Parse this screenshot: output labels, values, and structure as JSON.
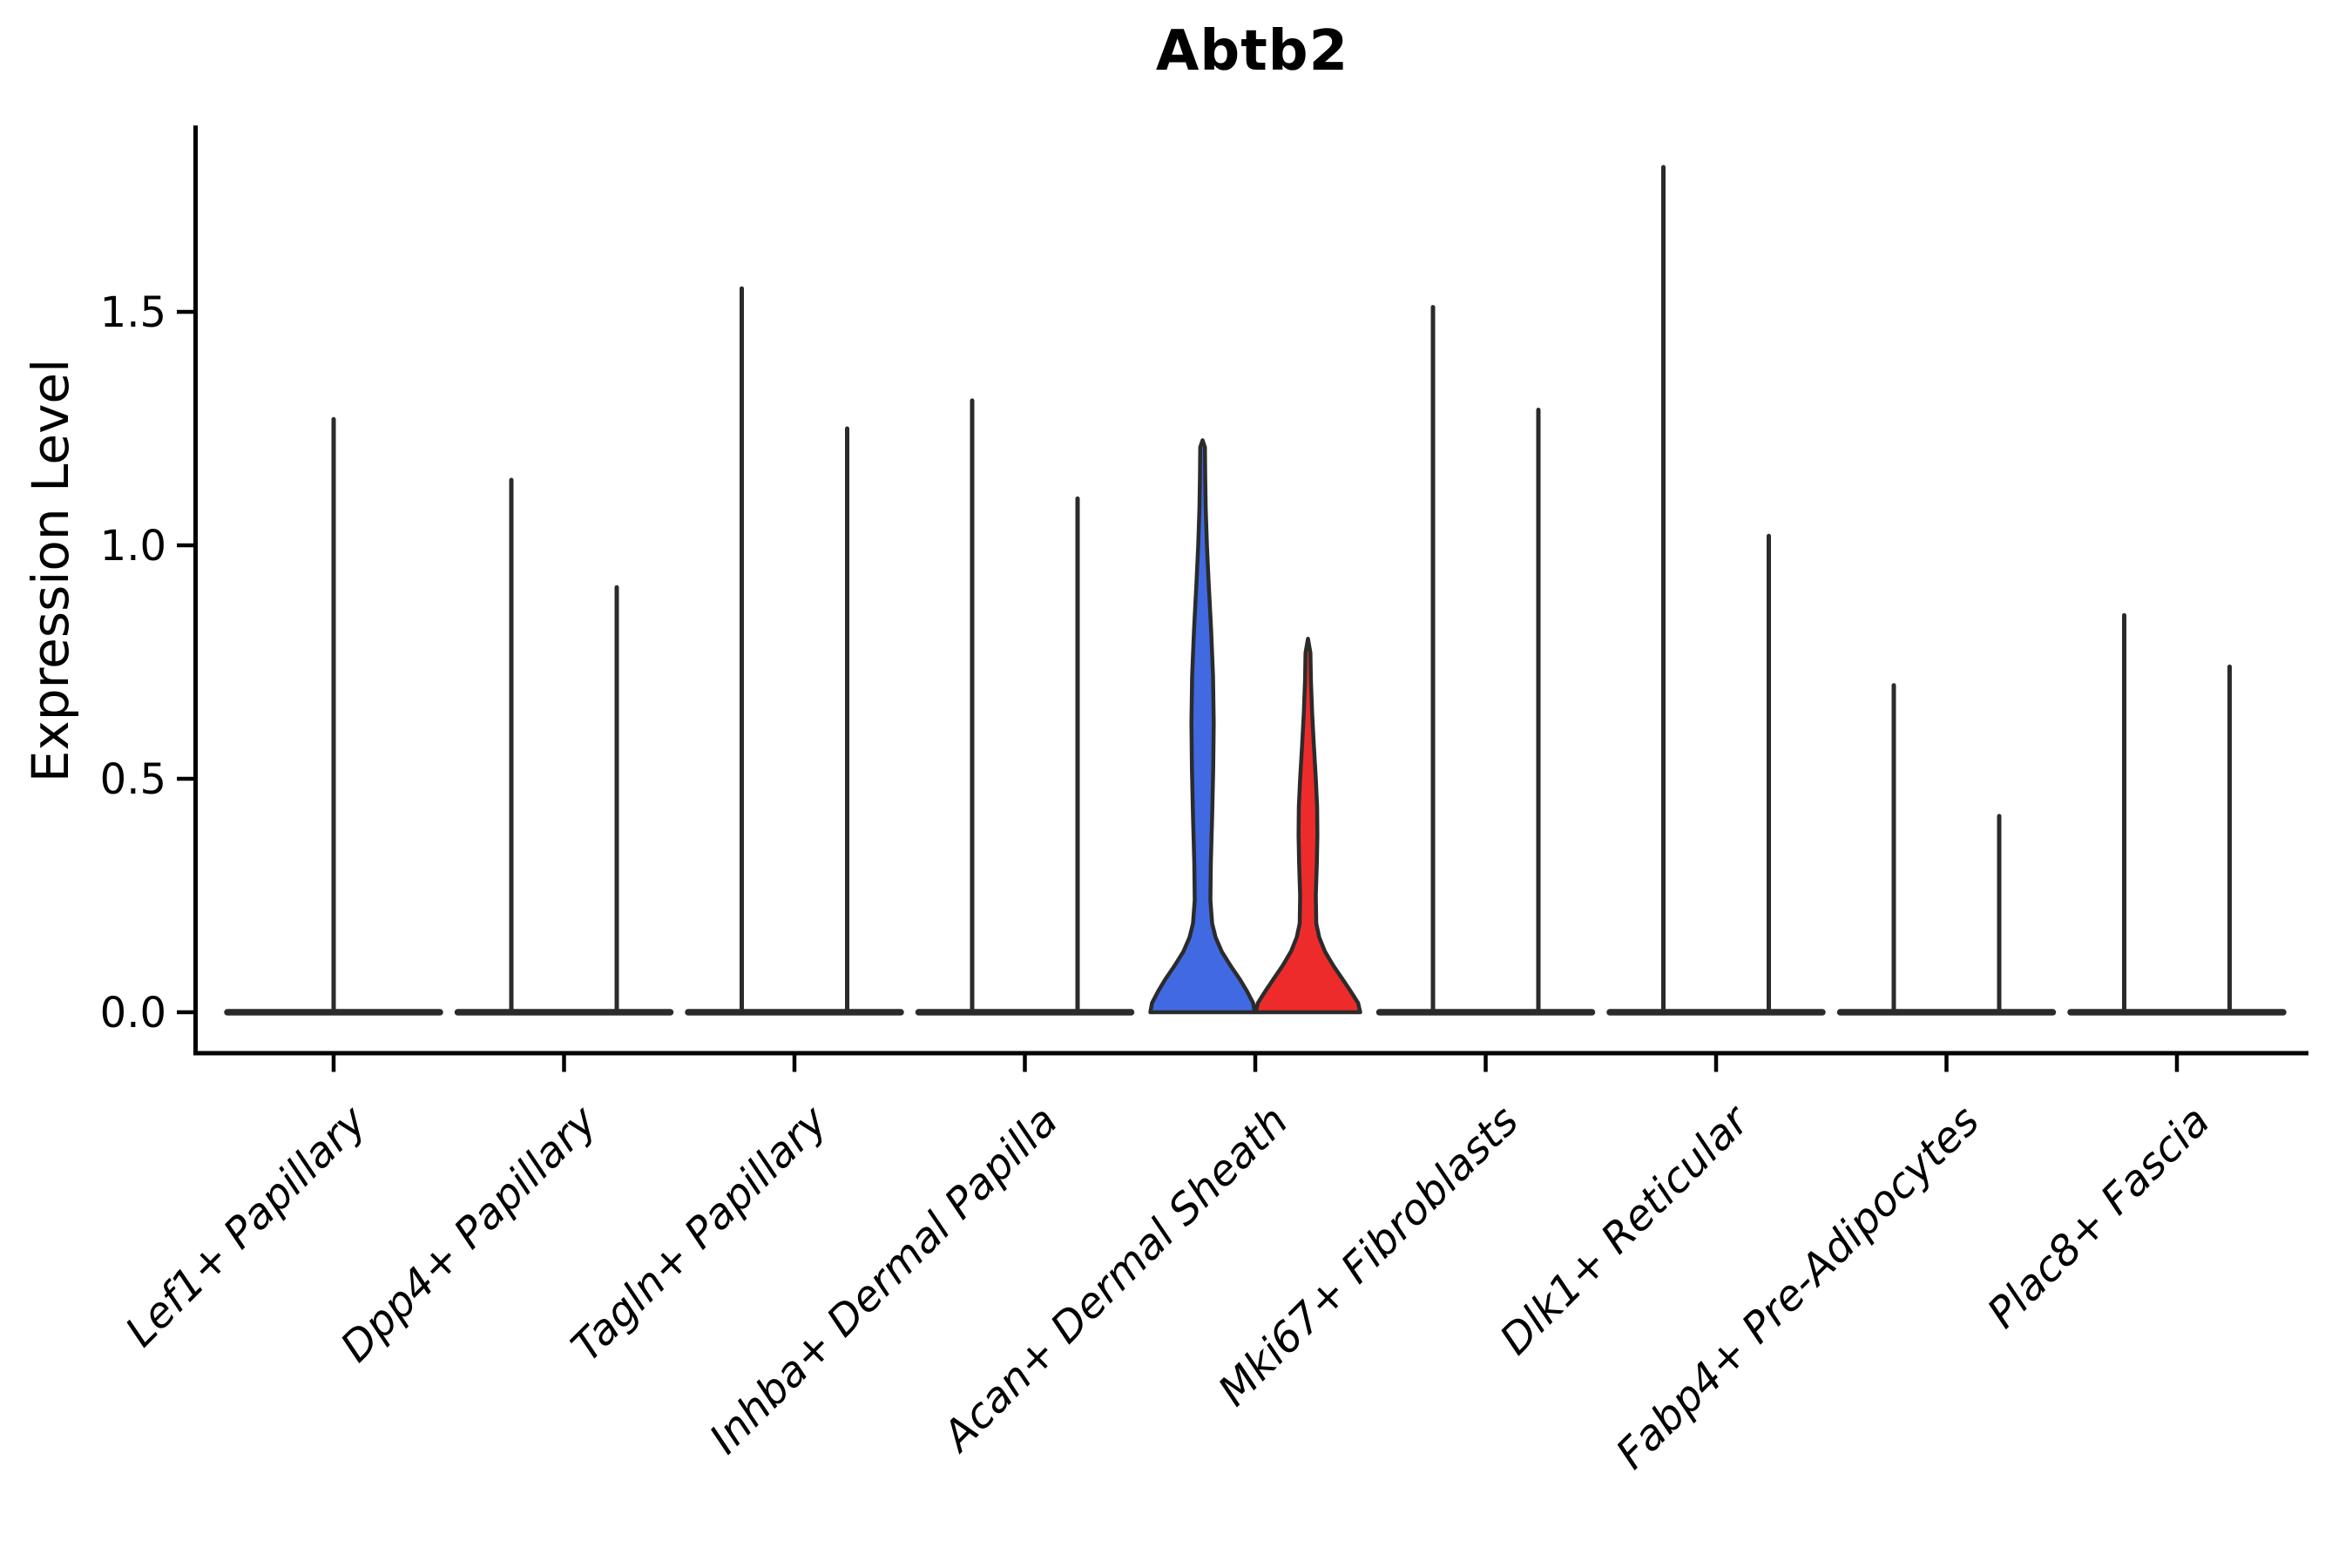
{
  "title": "Abtb2",
  "chart_data": {
    "type": "violin",
    "title": "Abtb2",
    "ylabel": "Expression Level",
    "xlabel": "",
    "background_color": "#ffffff",
    "axis_color": "#000000",
    "violin_outline_color": "#2b2b2b",
    "blue_fill": "#4169E1",
    "red_fill": "#EE2B2B",
    "grid": "off",
    "legend_position": "none",
    "ylim": [
      -0.088,
      1.9
    ],
    "yticks": [
      {
        "value": 0.0,
        "label": "0.0"
      },
      {
        "value": 0.5,
        "label": "0.5"
      },
      {
        "value": 1.0,
        "label": "1.0"
      },
      {
        "value": 1.5,
        "label": "1.5"
      }
    ],
    "categories": [
      "Lef1+ Papillary",
      "Dpp4+ Papillary",
      "Tagln+ Papillary",
      "Inhba+ Dermal Papilla",
      "Acan+ Dermal Sheath",
      "Mki67+ Fibroblasts",
      "Dlk1+ Reticular",
      "Fabp4+ Pre-Adipocytes",
      "Plac8+ Fascia"
    ],
    "groups": [
      {
        "label": "Lef1+ Papillary",
        "violins": [
          {
            "position": "center",
            "kind": "spike",
            "max_expression": 1.27,
            "full_width": true
          }
        ]
      },
      {
        "label": "Dpp4+ Papillary",
        "violins": [
          {
            "position": "left",
            "kind": "spike",
            "max_expression": 1.14
          },
          {
            "position": "right",
            "kind": "spike",
            "max_expression": 0.91
          }
        ]
      },
      {
        "label": "Tagln+ Papillary",
        "violins": [
          {
            "position": "left",
            "kind": "spike",
            "max_expression": 1.55
          },
          {
            "position": "right",
            "kind": "spike",
            "max_expression": 1.25
          }
        ]
      },
      {
        "label": "Inhba+ Dermal Papilla",
        "violins": [
          {
            "position": "left",
            "kind": "spike",
            "max_expression": 1.31
          },
          {
            "position": "right",
            "kind": "spike",
            "max_expression": 1.1
          }
        ]
      },
      {
        "label": "Acan+ Dermal Sheath",
        "violins": [
          {
            "position": "left",
            "kind": "violin",
            "max_expression": 1.22,
            "fill_color": "#4169E1",
            "profile": [
              [
                0,
                60
              ],
              [
                0.02,
                58
              ],
              [
                0.045,
                51
              ],
              [
                0.07,
                43
              ],
              [
                0.1,
                32
              ],
              [
                0.13,
                22
              ],
              [
                0.16,
                15
              ],
              [
                0.19,
                11
              ],
              [
                0.24,
                9
              ],
              [
                0.32,
                9.5
              ],
              [
                0.42,
                11
              ],
              [
                0.52,
                12.2
              ],
              [
                0.62,
                12.8
              ],
              [
                0.72,
                12
              ],
              [
                0.82,
                9.8
              ],
              [
                0.92,
                7
              ],
              [
                1.0,
                5
              ],
              [
                1.08,
                3.6
              ],
              [
                1.15,
                3
              ],
              [
                1.21,
                2.7
              ],
              [
                1.225,
                0
              ]
            ]
          },
          {
            "position": "right",
            "kind": "violin",
            "max_expression": 0.8,
            "fill_color": "#EE2B2B",
            "profile": [
              [
                0,
                60
              ],
              [
                0.02,
                57.5
              ],
              [
                0.045,
                49
              ],
              [
                0.07,
                40
              ],
              [
                0.1,
                29
              ],
              [
                0.13,
                19.5
              ],
              [
                0.16,
                13
              ],
              [
                0.19,
                9.5
              ],
              [
                0.25,
                9
              ],
              [
                0.32,
                10.2
              ],
              [
                0.38,
                10.8
              ],
              [
                0.44,
                10.5
              ],
              [
                0.5,
                9
              ],
              [
                0.57,
                6.8
              ],
              [
                0.64,
                4.8
              ],
              [
                0.71,
                3.4
              ],
              [
                0.77,
                2.8
              ],
              [
                0.8,
                0
              ]
            ]
          }
        ]
      },
      {
        "label": "Mki67+ Fibroblasts",
        "violins": [
          {
            "position": "left",
            "kind": "spike",
            "max_expression": 1.51
          },
          {
            "position": "right",
            "kind": "spike",
            "max_expression": 1.29
          }
        ]
      },
      {
        "label": "Dlk1+ Reticular",
        "violins": [
          {
            "position": "left",
            "kind": "spike",
            "max_expression": 1.81
          },
          {
            "position": "right",
            "kind": "spike",
            "max_expression": 1.02
          }
        ]
      },
      {
        "label": "Fabp4+ Pre-Adipocytes",
        "violins": [
          {
            "position": "left",
            "kind": "spike",
            "max_expression": 0.7
          },
          {
            "position": "right",
            "kind": "spike",
            "max_expression": 0.42
          }
        ]
      },
      {
        "label": "Plac8+ Fascia",
        "violins": [
          {
            "position": "left",
            "kind": "spike",
            "max_expression": 0.85
          },
          {
            "position": "right",
            "kind": "spike",
            "max_expression": 0.74
          }
        ]
      }
    ]
  }
}
